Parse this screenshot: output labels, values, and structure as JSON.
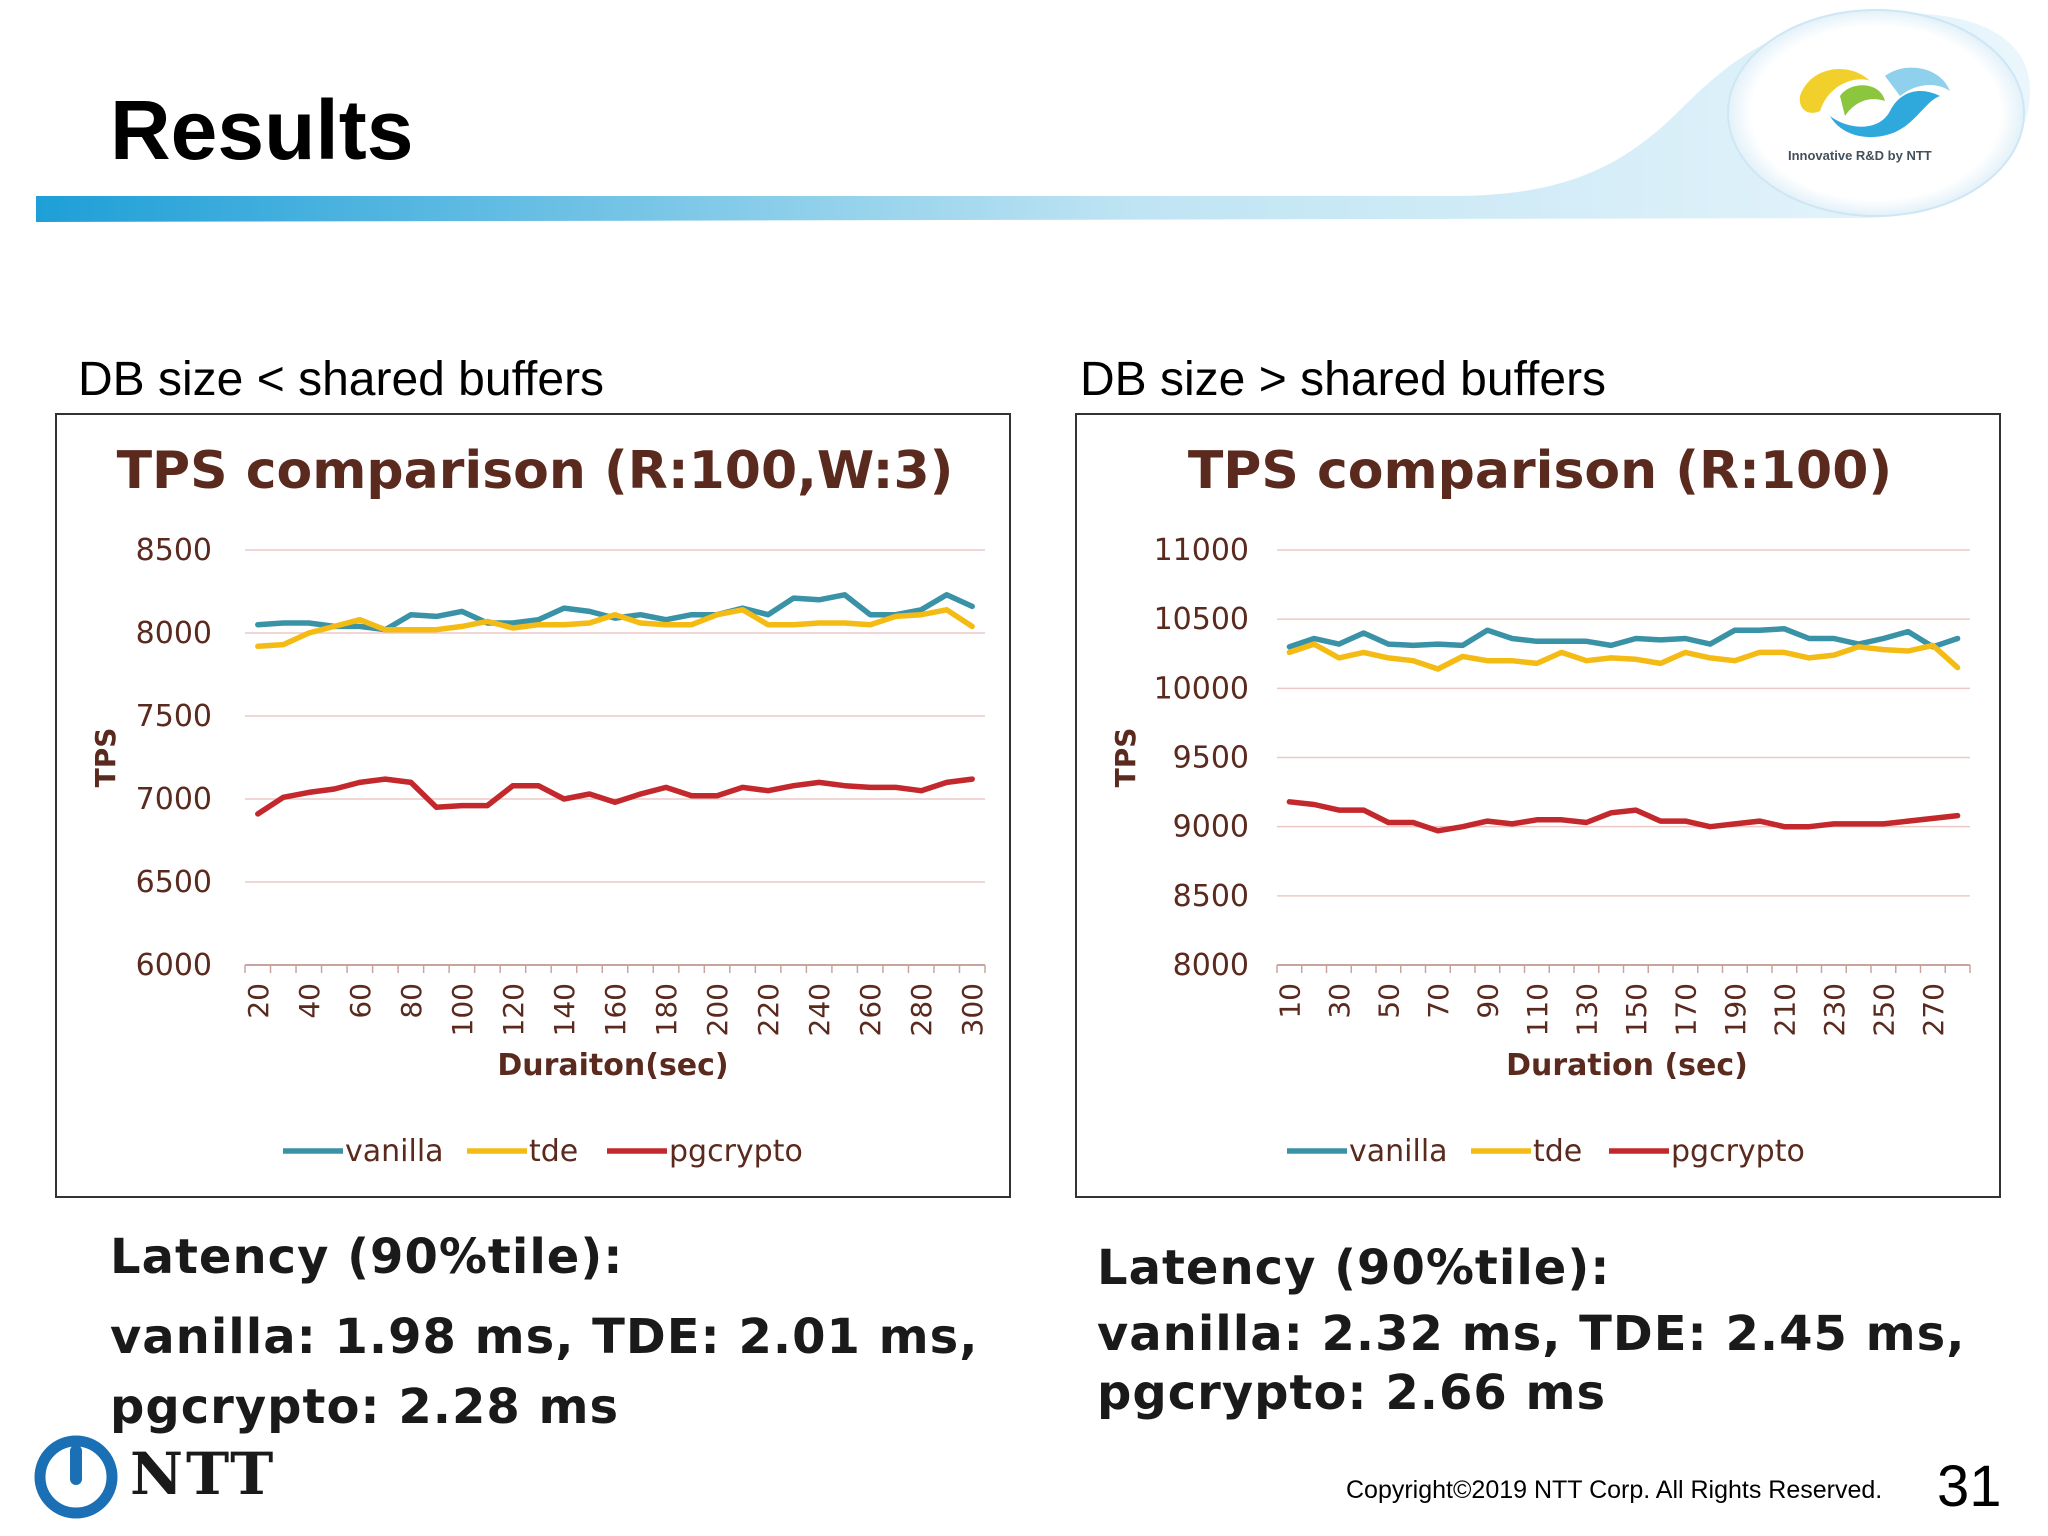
{
  "slide": {
    "title": "Results",
    "brand_text": "Innovative R&D by NTT",
    "logo_text": "NTT",
    "copyright": "Copyright©2019  NTT Corp. All Rights Reserved.",
    "page_number": "31"
  },
  "left": {
    "section_label": "DB size < shared buffers",
    "latency_heading": "Latency (90%tile):",
    "latency_line1": "vanilla: 1.98 ms, TDE: 2.01 ms,",
    "latency_line2": "pgcrypto: 2.28 ms"
  },
  "right": {
    "section_label": "DB size > shared buffers",
    "latency_heading": "Latency (90%tile):",
    "latency_line1": "vanilla: 2.32 ms, TDE: 2.45 ms,",
    "latency_line2": "pgcrypto: 2.66 ms"
  },
  "chart_data": [
    {
      "type": "line",
      "title": "TPS  comparison (R:100,W:3)",
      "xlabel": "Duraiton(sec)",
      "ylabel": "TPS",
      "ylim": [
        6000,
        8500
      ],
      "yticks": [
        8500,
        8000,
        7500,
        7000,
        6500,
        6000
      ],
      "x": [
        20,
        30,
        40,
        50,
        60,
        70,
        80,
        90,
        100,
        110,
        120,
        130,
        140,
        150,
        160,
        170,
        180,
        190,
        200,
        210,
        220,
        230,
        240,
        250,
        260,
        270,
        280,
        290,
        300
      ],
      "xtick_labels": [
        "20",
        "40",
        "60",
        "80",
        "100",
        "120",
        "140",
        "160",
        "180",
        "200",
        "220",
        "240",
        "260",
        "280",
        "300"
      ],
      "grid": true,
      "legend": "bottom",
      "series": [
        {
          "name": "vanilla",
          "color": "#3a92a6",
          "values": [
            8050,
            8060,
            8060,
            8040,
            8040,
            8020,
            8110,
            8100,
            8130,
            8060,
            8060,
            8080,
            8150,
            8130,
            8090,
            8110,
            8080,
            8110,
            8110,
            8150,
            8110,
            8210,
            8200,
            8230,
            8110,
            8110,
            8140,
            8230,
            8160
          ]
        },
        {
          "name": "tde",
          "color": "#f5bb15",
          "values": [
            7920,
            7930,
            8000,
            8040,
            8080,
            8020,
            8020,
            8020,
            8040,
            8070,
            8030,
            8050,
            8050,
            8060,
            8110,
            8060,
            8050,
            8050,
            8110,
            8140,
            8050,
            8050,
            8060,
            8060,
            8050,
            8100,
            8110,
            8140,
            8040
          ]
        },
        {
          "name": "pgcrypto",
          "color": "#c3282d",
          "values": [
            6910,
            7010,
            7040,
            7060,
            7100,
            7120,
            7100,
            6950,
            6960,
            6960,
            7080,
            7080,
            7000,
            7030,
            6980,
            7030,
            7070,
            7020,
            7020,
            7070,
            7050,
            7080,
            7100,
            7080,
            7070,
            7070,
            7050,
            7100,
            7120
          ]
        }
      ]
    },
    {
      "type": "line",
      "title": "TPS  comparison (R:100)",
      "xlabel": "Duration (sec)",
      "ylabel": "TPS",
      "ylim": [
        8000,
        11000
      ],
      "yticks": [
        11000,
        10500,
        10000,
        9500,
        9000,
        8500,
        8000
      ],
      "x": [
        10,
        20,
        30,
        40,
        50,
        60,
        70,
        80,
        90,
        100,
        110,
        120,
        130,
        140,
        150,
        160,
        170,
        180,
        190,
        200,
        210,
        220,
        230,
        240,
        250,
        260,
        270,
        280
      ],
      "xtick_labels": [
        "10",
        "30",
        "50",
        "70",
        "90",
        "110",
        "130",
        "150",
        "170",
        "190",
        "210",
        "230",
        "250",
        "270"
      ],
      "grid": true,
      "legend": "bottom",
      "series": [
        {
          "name": "vanilla",
          "color": "#3a92a6",
          "values": [
            10300,
            10360,
            10320,
            10400,
            10320,
            10310,
            10320,
            10310,
            10420,
            10360,
            10340,
            10340,
            10340,
            10310,
            10360,
            10350,
            10360,
            10320,
            10420,
            10420,
            10430,
            10360,
            10360,
            10320,
            10360,
            10410,
            10300,
            10360
          ]
        },
        {
          "name": "tde",
          "color": "#f5bb15",
          "values": [
            10260,
            10320,
            10220,
            10260,
            10220,
            10200,
            10140,
            10230,
            10200,
            10200,
            10180,
            10260,
            10200,
            10220,
            10210,
            10180,
            10260,
            10220,
            10200,
            10260,
            10260,
            10220,
            10240,
            10300,
            10280,
            10270,
            10310,
            10150
          ]
        },
        {
          "name": "pgcrypto",
          "color": "#c3282d",
          "values": [
            9180,
            9160,
            9120,
            9120,
            9030,
            9030,
            8970,
            9000,
            9040,
            9020,
            9050,
            9050,
            9030,
            9100,
            9120,
            9040,
            9040,
            9000,
            9020,
            9040,
            9000,
            9000,
            9020,
            9020,
            9020,
            9040,
            9060,
            9080
          ]
        }
      ]
    }
  ]
}
